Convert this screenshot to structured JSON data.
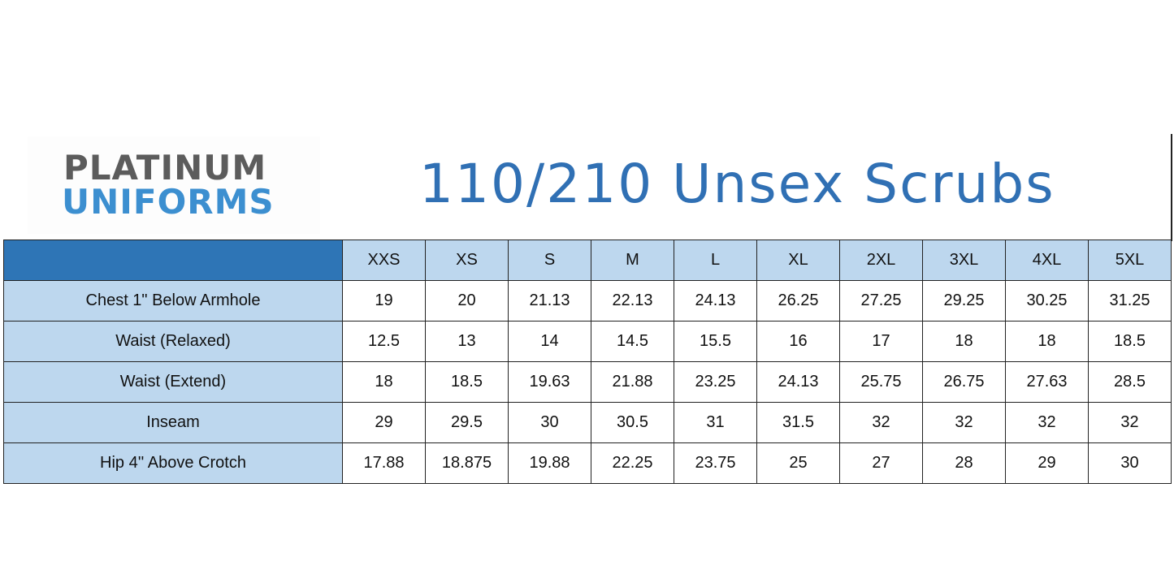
{
  "logo": {
    "line1": "PLATINUM",
    "line2": "UNIFORMS"
  },
  "title": "110/210 Unsex Scrubs",
  "colors": {
    "header": "#2e75b6",
    "label_fill": "#bdd7ee",
    "title": "#3070b4"
  },
  "sizes": [
    "XXS",
    "XS",
    "S",
    "M",
    "L",
    "XL",
    "2XL",
    "3XL",
    "4XL",
    "5XL"
  ],
  "rows": [
    {
      "label": "Chest 1\" Below Armhole",
      "values": [
        "19",
        "20",
        "21.13",
        "22.13",
        "24.13",
        "26.25",
        "27.25",
        "29.25",
        "30.25",
        "31.25"
      ]
    },
    {
      "label": "Waist (Relaxed)",
      "values": [
        "12.5",
        "13",
        "14",
        "14.5",
        "15.5",
        "16",
        "17",
        "18",
        "18",
        "18.5"
      ]
    },
    {
      "label": "Waist (Extend)",
      "values": [
        "18",
        "18.5",
        "19.63",
        "21.88",
        "23.25",
        "24.13",
        "25.75",
        "26.75",
        "27.63",
        "28.5"
      ]
    },
    {
      "label": "Inseam",
      "values": [
        "29",
        "29.5",
        "30",
        "30.5",
        "31",
        "31.5",
        "32",
        "32",
        "32",
        "32"
      ]
    },
    {
      "label": "Hip  4'' Above Crotch",
      "values": [
        "17.88",
        "18.875",
        "19.88",
        "22.25",
        "23.75",
        "25",
        "27",
        "28",
        "29",
        "30"
      ]
    }
  ]
}
